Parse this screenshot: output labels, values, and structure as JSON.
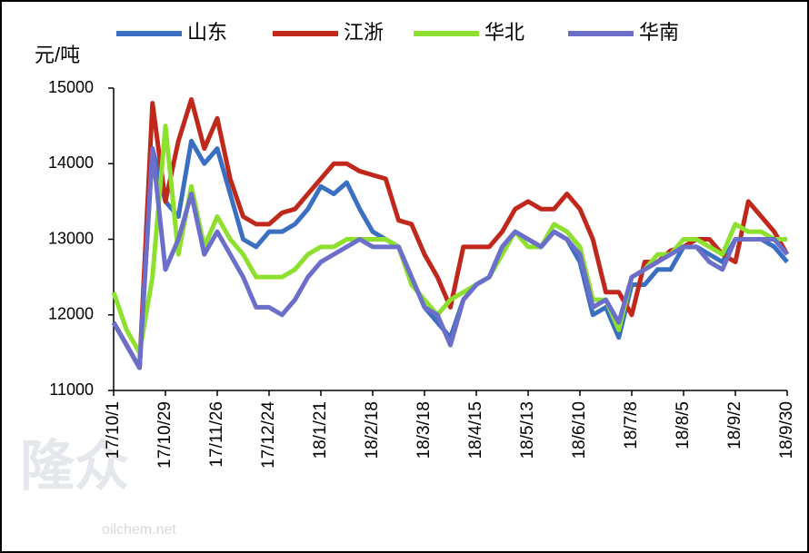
{
  "chart_data": {
    "type": "line",
    "y_label": "元/吨",
    "watermark": [
      "隆众",
      "oilchem.net"
    ],
    "categories": [
      "17/10/1",
      null,
      null,
      null,
      "17/10/29",
      null,
      null,
      null,
      "17/11/26",
      null,
      null,
      null,
      "17/12/24",
      null,
      null,
      null,
      "18/1/21",
      null,
      null,
      null,
      "18/2/18",
      null,
      null,
      null,
      "18/3/18",
      null,
      null,
      null,
      "18/4/15",
      null,
      null,
      null,
      "18/5/13",
      null,
      null,
      null,
      "18/6/10",
      null,
      null,
      null,
      "18/7/8",
      null,
      null,
      null,
      "18/8/5",
      null,
      null,
      null,
      "18/9/2",
      null,
      null,
      null,
      "18/9/30"
    ],
    "series": [
      {
        "name": "山东",
        "color": "#3b6fc2",
        "values": [
          11900,
          11600,
          11300,
          14200,
          13500,
          13300,
          14300,
          14000,
          14200,
          13600,
          13000,
          12900,
          13100,
          13100,
          13200,
          13400,
          13700,
          13600,
          13750,
          13400,
          13100,
          13000,
          12900,
          12500,
          12100,
          11900,
          11700,
          12200,
          12400,
          12500,
          12900,
          13100,
          13000,
          12900,
          13100,
          13000,
          12700,
          12000,
          12100,
          11700,
          12400,
          12400,
          12600,
          12600,
          12900,
          12900,
          12800,
          12700,
          13000,
          13000,
          13000,
          12900,
          12700
        ]
      },
      {
        "name": "江浙",
        "color": "#c0281c",
        "values": [
          11900,
          11600,
          11300,
          14800,
          13500,
          14300,
          14850,
          14200,
          14600,
          13800,
          13300,
          13200,
          13200,
          13350,
          13400,
          13600,
          13800,
          14000,
          14000,
          13900,
          13850,
          13800,
          13250,
          13200,
          12800,
          12500,
          12100,
          12900,
          12900,
          12900,
          13100,
          13400,
          13500,
          13400,
          13400,
          13600,
          13400,
          13000,
          12300,
          12300,
          12000,
          12700,
          12700,
          12850,
          12900,
          13000,
          13000,
          12800,
          12700,
          13500,
          13300,
          13100,
          12800
        ]
      },
      {
        "name": "华北",
        "color": "#8ee02e",
        "values": [
          12300,
          11800,
          11500,
          12500,
          14500,
          12800,
          13700,
          12900,
          13300,
          13000,
          12800,
          12500,
          12500,
          12500,
          12600,
          12800,
          12900,
          12900,
          13000,
          13000,
          13000,
          13000,
          12900,
          12400,
          12200,
          12000,
          12200,
          12300,
          12400,
          12500,
          12800,
          13100,
          12900,
          12900,
          13200,
          13100,
          12900,
          12200,
          12200,
          11800,
          12500,
          12600,
          12800,
          12800,
          13000,
          13000,
          12900,
          12800,
          13200,
          13100,
          13100,
          13000,
          13000
        ]
      },
      {
        "name": "华南",
        "color": "#6b6fc9",
        "values": [
          11900,
          11600,
          11300,
          14200,
          12600,
          13000,
          13600,
          12800,
          13100,
          12800,
          12500,
          12100,
          12100,
          12000,
          12200,
          12500,
          12700,
          12800,
          12900,
          13000,
          12900,
          12900,
          12900,
          12500,
          12100,
          12000,
          11600,
          12200,
          12400,
          12500,
          12900,
          13100,
          13000,
          12900,
          13100,
          13000,
          12800,
          12100,
          12200,
          11900,
          12500,
          12600,
          12700,
          12800,
          12900,
          12900,
          12700,
          12600,
          13000,
          13000,
          13000,
          13000,
          12800
        ]
      }
    ],
    "ylim": [
      11000,
      15000
    ],
    "yticks": [
      11000,
      12000,
      13000,
      14000,
      15000
    ]
  }
}
